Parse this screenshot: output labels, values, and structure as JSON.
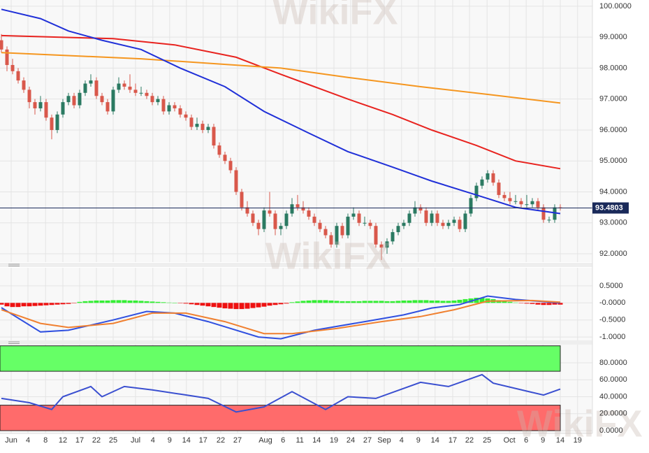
{
  "watermark": "WikiFX",
  "chart_data": [
    {
      "type": "candlestick",
      "ylim": [
        91.73,
        100.2
      ],
      "yticks": [
        {
          "value": 100,
          "label": "100.0000"
        },
        {
          "value": 99,
          "label": "99.0000"
        },
        {
          "value": 98,
          "label": "98.0000"
        },
        {
          "value": 97,
          "label": "97.0000"
        },
        {
          "value": 96,
          "label": "96.0000"
        },
        {
          "value": 95,
          "label": "95.0000"
        },
        {
          "value": 94,
          "label": "94.0000"
        },
        {
          "value": 93,
          "label": "93.0000"
        },
        {
          "value": 92,
          "label": "92.0000"
        }
      ],
      "grid": true,
      "up_color": "#2b7a62",
      "down_color": "#d9584b",
      "ohlc": [
        [
          98.9,
          99.1,
          98.5,
          98.6
        ],
        [
          98.6,
          98.7,
          97.9,
          98.1
        ],
        [
          98.1,
          98.3,
          97.8,
          97.9
        ],
        [
          97.9,
          98.0,
          97.5,
          97.6
        ],
        [
          97.6,
          97.7,
          97.2,
          97.3
        ],
        [
          97.3,
          97.4,
          96.7,
          96.9
        ],
        [
          96.9,
          97.0,
          96.5,
          96.7
        ],
        [
          96.7,
          97.1,
          96.6,
          96.9
        ],
        [
          96.9,
          97.0,
          96.3,
          96.4
        ],
        [
          96.4,
          96.5,
          95.7,
          96.0
        ],
        [
          96.0,
          96.6,
          95.9,
          96.5
        ],
        [
          96.5,
          97.0,
          96.4,
          96.9
        ],
        [
          96.9,
          97.2,
          96.8,
          97.1
        ],
        [
          97.1,
          97.2,
          96.7,
          96.8
        ],
        [
          96.8,
          97.3,
          96.7,
          97.2
        ],
        [
          97.2,
          97.6,
          97.1,
          97.5
        ],
        [
          97.5,
          97.8,
          97.4,
          97.6
        ],
        [
          97.6,
          97.7,
          97.0,
          97.1
        ],
        [
          97.1,
          97.2,
          96.8,
          96.9
        ],
        [
          96.9,
          97.0,
          96.5,
          96.6
        ],
        [
          96.6,
          97.4,
          96.5,
          97.3
        ],
        [
          97.3,
          97.7,
          97.2,
          97.5
        ],
        [
          97.5,
          97.6,
          97.3,
          97.4
        ],
        [
          97.4,
          97.8,
          97.2,
          97.3
        ],
        [
          97.3,
          97.5,
          97.1,
          97.2
        ],
        [
          97.2,
          97.4,
          97.1,
          97.2
        ],
        [
          97.2,
          97.3,
          97.0,
          97.1
        ],
        [
          97.1,
          97.2,
          96.8,
          96.9
        ],
        [
          96.9,
          97.1,
          96.8,
          97.0
        ],
        [
          97.0,
          97.1,
          96.5,
          96.6
        ],
        [
          96.6,
          96.9,
          96.5,
          96.8
        ],
        [
          96.8,
          96.9,
          96.6,
          96.7
        ],
        [
          96.7,
          96.8,
          96.4,
          96.5
        ],
        [
          96.5,
          96.6,
          96.3,
          96.4
        ],
        [
          96.4,
          96.5,
          96.0,
          96.1
        ],
        [
          96.1,
          96.4,
          96.0,
          96.2
        ],
        [
          96.2,
          96.3,
          95.9,
          96.0
        ],
        [
          96.0,
          96.2,
          95.9,
          96.1
        ],
        [
          96.1,
          96.2,
          95.4,
          95.5
        ],
        [
          95.5,
          95.6,
          95.1,
          95.2
        ],
        [
          95.2,
          95.3,
          94.9,
          95.0
        ],
        [
          95.0,
          95.1,
          94.6,
          94.7
        ],
        [
          94.7,
          94.8,
          93.9,
          94.0
        ],
        [
          94.0,
          94.1,
          93.4,
          93.5
        ],
        [
          93.5,
          93.7,
          93.2,
          93.3
        ],
        [
          93.3,
          93.4,
          92.9,
          93.0
        ],
        [
          93.0,
          93.1,
          92.6,
          92.8
        ],
        [
          92.8,
          93.5,
          92.7,
          93.4
        ],
        [
          93.4,
          94.0,
          93.2,
          93.3
        ],
        [
          93.3,
          93.4,
          92.6,
          92.8
        ],
        [
          92.8,
          93.0,
          92.6,
          92.9
        ],
        [
          92.9,
          93.4,
          92.8,
          93.3
        ],
        [
          93.3,
          93.8,
          93.2,
          93.6
        ],
        [
          93.6,
          93.9,
          93.4,
          93.5
        ],
        [
          93.5,
          93.7,
          93.3,
          93.4
        ],
        [
          93.4,
          93.5,
          93.1,
          93.2
        ],
        [
          93.2,
          93.3,
          92.9,
          93.0
        ],
        [
          93.0,
          93.1,
          92.7,
          92.8
        ],
        [
          92.8,
          92.9,
          92.5,
          92.6
        ],
        [
          92.6,
          92.7,
          92.2,
          92.3
        ],
        [
          92.3,
          93.0,
          92.2,
          92.9
        ],
        [
          92.9,
          93.0,
          92.5,
          92.6
        ],
        [
          92.6,
          93.3,
          92.5,
          93.2
        ],
        [
          93.2,
          93.5,
          93.1,
          93.3
        ],
        [
          93.3,
          93.4,
          92.9,
          93.0
        ],
        [
          93.0,
          93.2,
          92.9,
          93.0
        ],
        [
          93.0,
          93.1,
          92.8,
          92.9
        ],
        [
          92.9,
          93.0,
          92.2,
          92.3
        ],
        [
          92.3,
          92.4,
          91.8,
          92.2
        ],
        [
          92.2,
          92.5,
          92.0,
          92.4
        ],
        [
          92.4,
          92.8,
          92.3,
          92.7
        ],
        [
          92.7,
          93.0,
          92.6,
          92.9
        ],
        [
          92.9,
          93.1,
          92.8,
          93.0
        ],
        [
          93.0,
          93.4,
          92.9,
          93.3
        ],
        [
          93.3,
          93.7,
          93.2,
          93.5
        ],
        [
          93.5,
          93.6,
          93.3,
          93.4
        ],
        [
          93.4,
          93.5,
          92.9,
          93.0
        ],
        [
          93.0,
          93.4,
          92.9,
          93.3
        ],
        [
          93.3,
          93.4,
          92.9,
          93.0
        ],
        [
          93.0,
          93.1,
          92.8,
          92.9
        ],
        [
          92.9,
          93.1,
          92.8,
          93.0
        ],
        [
          93.0,
          93.2,
          92.9,
          93.1
        ],
        [
          93.1,
          93.2,
          92.7,
          92.8
        ],
        [
          92.8,
          93.4,
          92.7,
          93.3
        ],
        [
          93.3,
          93.9,
          93.2,
          93.8
        ],
        [
          93.8,
          94.3,
          93.7,
          94.2
        ],
        [
          94.2,
          94.5,
          94.1,
          94.4
        ],
        [
          94.4,
          94.7,
          94.3,
          94.6
        ],
        [
          94.6,
          94.7,
          94.2,
          94.3
        ],
        [
          94.3,
          94.4,
          93.8,
          93.9
        ],
        [
          93.9,
          94.0,
          93.7,
          93.8
        ],
        [
          93.8,
          94.0,
          93.6,
          93.7
        ],
        [
          93.7,
          93.9,
          93.6,
          93.7
        ],
        [
          93.7,
          93.8,
          93.5,
          93.6
        ],
        [
          93.6,
          93.9,
          93.5,
          93.6
        ],
        [
          93.6,
          93.8,
          93.5,
          93.7
        ],
        [
          93.7,
          93.8,
          93.4,
          93.5
        ],
        [
          93.5,
          93.6,
          93.0,
          93.1
        ],
        [
          93.1,
          93.2,
          93.0,
          93.1
        ],
        [
          93.1,
          93.6,
          93.0,
          93.5
        ],
        [
          93.5,
          93.6,
          93.4,
          93.4803
        ]
      ],
      "series": [
        {
          "color": "#e8231f",
          "x": [
            0,
            10,
            20,
            31,
            42,
            50,
            56,
            62,
            70,
            77,
            85,
            92,
            100
          ],
          "values": [
            99.05,
            99.0,
            98.95,
            98.75,
            98.35,
            97.8,
            97.4,
            97.0,
            96.5,
            96.0,
            95.5,
            95.0,
            94.75
          ]
        },
        {
          "color": "#f5961f",
          "x": [
            0,
            25,
            50,
            62,
            75,
            87,
            100
          ],
          "values": [
            98.5,
            98.3,
            98.0,
            97.7,
            97.4,
            97.15,
            96.87
          ]
        },
        {
          "color": "#2030d8",
          "x": [
            0,
            7,
            12,
            18,
            25,
            32,
            40,
            47,
            55,
            62,
            70,
            77,
            85,
            92,
            100
          ],
          "values": [
            99.9,
            99.6,
            99.2,
            98.9,
            98.6,
            98.0,
            97.4,
            96.6,
            95.9,
            95.3,
            94.8,
            94.35,
            93.9,
            93.5,
            93.3
          ]
        }
      ],
      "last_price": 93.4803,
      "last_price_color": "#1a2a5a"
    },
    {
      "type": "macd",
      "ylim": [
        -1.1,
        1.03
      ],
      "yticks": [
        {
          "value": 0.5,
          "label": "0.5000"
        },
        {
          "value": 0,
          "label": "-0.0000"
        },
        {
          "value": -0.5,
          "label": "-0.5000"
        },
        {
          "value": -1,
          "label": "-1.0000"
        }
      ],
      "grid": true,
      "up_color": "#33ee33",
      "down_color": "#ee1111",
      "histogram": [
        -0.05,
        -0.1,
        -0.12,
        -0.12,
        -0.1,
        -0.1,
        -0.09,
        -0.08,
        -0.07,
        -0.06,
        -0.05,
        -0.04,
        -0.03,
        -0.01,
        0.03,
        0.05,
        0.06,
        0.07,
        0.07,
        0.07,
        0.08,
        0.08,
        0.08,
        0.07,
        0.07,
        0.06,
        0.05,
        0.04,
        0.03,
        0.02,
        0.01,
        0.0,
        -0.01,
        -0.02,
        -0.04,
        -0.06,
        -0.08,
        -0.1,
        -0.12,
        -0.14,
        -0.16,
        -0.17,
        -0.18,
        -0.18,
        -0.17,
        -0.15,
        -0.13,
        -0.11,
        -0.08,
        -0.06,
        -0.04,
        -0.02,
        0.02,
        0.04,
        0.06,
        0.07,
        0.08,
        0.08,
        0.08,
        0.07,
        0.06,
        0.05,
        0.05,
        0.05,
        0.05,
        0.06,
        0.06,
        0.06,
        0.06,
        0.05,
        0.05,
        0.06,
        0.07,
        0.07,
        0.08,
        0.08,
        0.08,
        0.07,
        0.07,
        0.06,
        0.06,
        0.07,
        0.09,
        0.11,
        0.13,
        0.15,
        0.15,
        0.13,
        0.11,
        0.08,
        0.05,
        0.03,
        0.01,
        -0.01,
        -0.02,
        -0.03,
        -0.05,
        -0.06,
        -0.06,
        -0.05,
        -0.05
      ],
      "series": [
        {
          "color": "#3050e0",
          "x": [
            0,
            7,
            12,
            20,
            26,
            31,
            37,
            46,
            50,
            56,
            65,
            72,
            77,
            82,
            87,
            92,
            100
          ],
          "values": [
            -0.14,
            -0.85,
            -0.8,
            -0.5,
            -0.25,
            -0.3,
            -0.55,
            -1.0,
            -1.05,
            -0.8,
            -0.55,
            -0.35,
            -0.15,
            -0.05,
            0.2,
            0.1,
            0.0
          ]
        },
        {
          "color": "#f08030",
          "x": [
            0,
            7,
            12,
            20,
            27,
            33,
            40,
            47,
            52,
            60,
            68,
            75,
            81,
            87,
            95,
            100
          ],
          "values": [
            -0.2,
            -0.6,
            -0.72,
            -0.6,
            -0.3,
            -0.3,
            -0.55,
            -0.9,
            -0.9,
            -0.75,
            -0.55,
            -0.4,
            -0.2,
            0.05,
            0.07,
            0.02
          ]
        }
      ]
    },
    {
      "type": "rsi",
      "ylim": [
        -3.3,
        101.4
      ],
      "yticks": [
        {
          "value": 80,
          "label": "80.0000"
        },
        {
          "value": 60,
          "label": "60.0000"
        },
        {
          "value": 40,
          "label": "40.0000"
        },
        {
          "value": 20,
          "label": "20.0000"
        },
        {
          "value": 0,
          "label": "0.0000"
        }
      ],
      "grid": true,
      "zones": [
        {
          "from": 70,
          "to": 100,
          "color": "#66ff66"
        },
        {
          "from": 0,
          "to": 30,
          "color": "#ff6b6b"
        }
      ],
      "series": [
        {
          "color": "#3a4fd0",
          "x": [
            0,
            5,
            9,
            11,
            16,
            18,
            22,
            27,
            32,
            37,
            42,
            47,
            52,
            58,
            62,
            67,
            75,
            80,
            86,
            88,
            95,
            97,
            100
          ],
          "values": [
            38,
            33,
            25,
            40,
            52,
            40,
            52,
            48,
            43,
            38,
            22,
            28,
            46,
            25,
            40,
            38,
            57,
            52,
            66,
            56,
            45,
            42,
            49
          ]
        }
      ],
      "xlim": [
        -0.25,
        105.75
      ],
      "xticks": [
        {
          "value": 1.75,
          "label": "Jun"
        },
        {
          "value": 4.75,
          "label": "4"
        },
        {
          "value": 7.9,
          "label": "8"
        },
        {
          "value": 11,
          "label": "12"
        },
        {
          "value": 14,
          "label": "17"
        },
        {
          "value": 17,
          "label": "22"
        },
        {
          "value": 20,
          "label": "25"
        },
        {
          "value": 24,
          "label": "Jul"
        },
        {
          "value": 27.1,
          "label": "4"
        },
        {
          "value": 30.1,
          "label": "9"
        },
        {
          "value": 33.1,
          "label": "14"
        },
        {
          "value": 36.1,
          "label": "17"
        },
        {
          "value": 39.25,
          "label": "22"
        },
        {
          "value": 42.25,
          "label": "27"
        },
        {
          "value": 47.25,
          "label": "Aug"
        },
        {
          "value": 50.4,
          "label": "6"
        },
        {
          "value": 53.4,
          "label": "11"
        },
        {
          "value": 56.4,
          "label": "14"
        },
        {
          "value": 59.5,
          "label": "19"
        },
        {
          "value": 62.5,
          "label": "24"
        },
        {
          "value": 65.5,
          "label": "27"
        },
        {
          "value": 68.5,
          "label": "Sep"
        },
        {
          "value": 71.6,
          "label": "4"
        },
        {
          "value": 74.6,
          "label": "9"
        },
        {
          "value": 77.6,
          "label": "14"
        },
        {
          "value": 80.75,
          "label": "17"
        },
        {
          "value": 83.75,
          "label": "22"
        },
        {
          "value": 86.9,
          "label": "25"
        },
        {
          "value": 90.9,
          "label": "Oct"
        },
        {
          "value": 93.9,
          "label": "6"
        },
        {
          "value": 96.9,
          "label": "9"
        },
        {
          "value": 100,
          "label": "14"
        },
        {
          "value": 103.1,
          "label": "19"
        }
      ]
    }
  ]
}
